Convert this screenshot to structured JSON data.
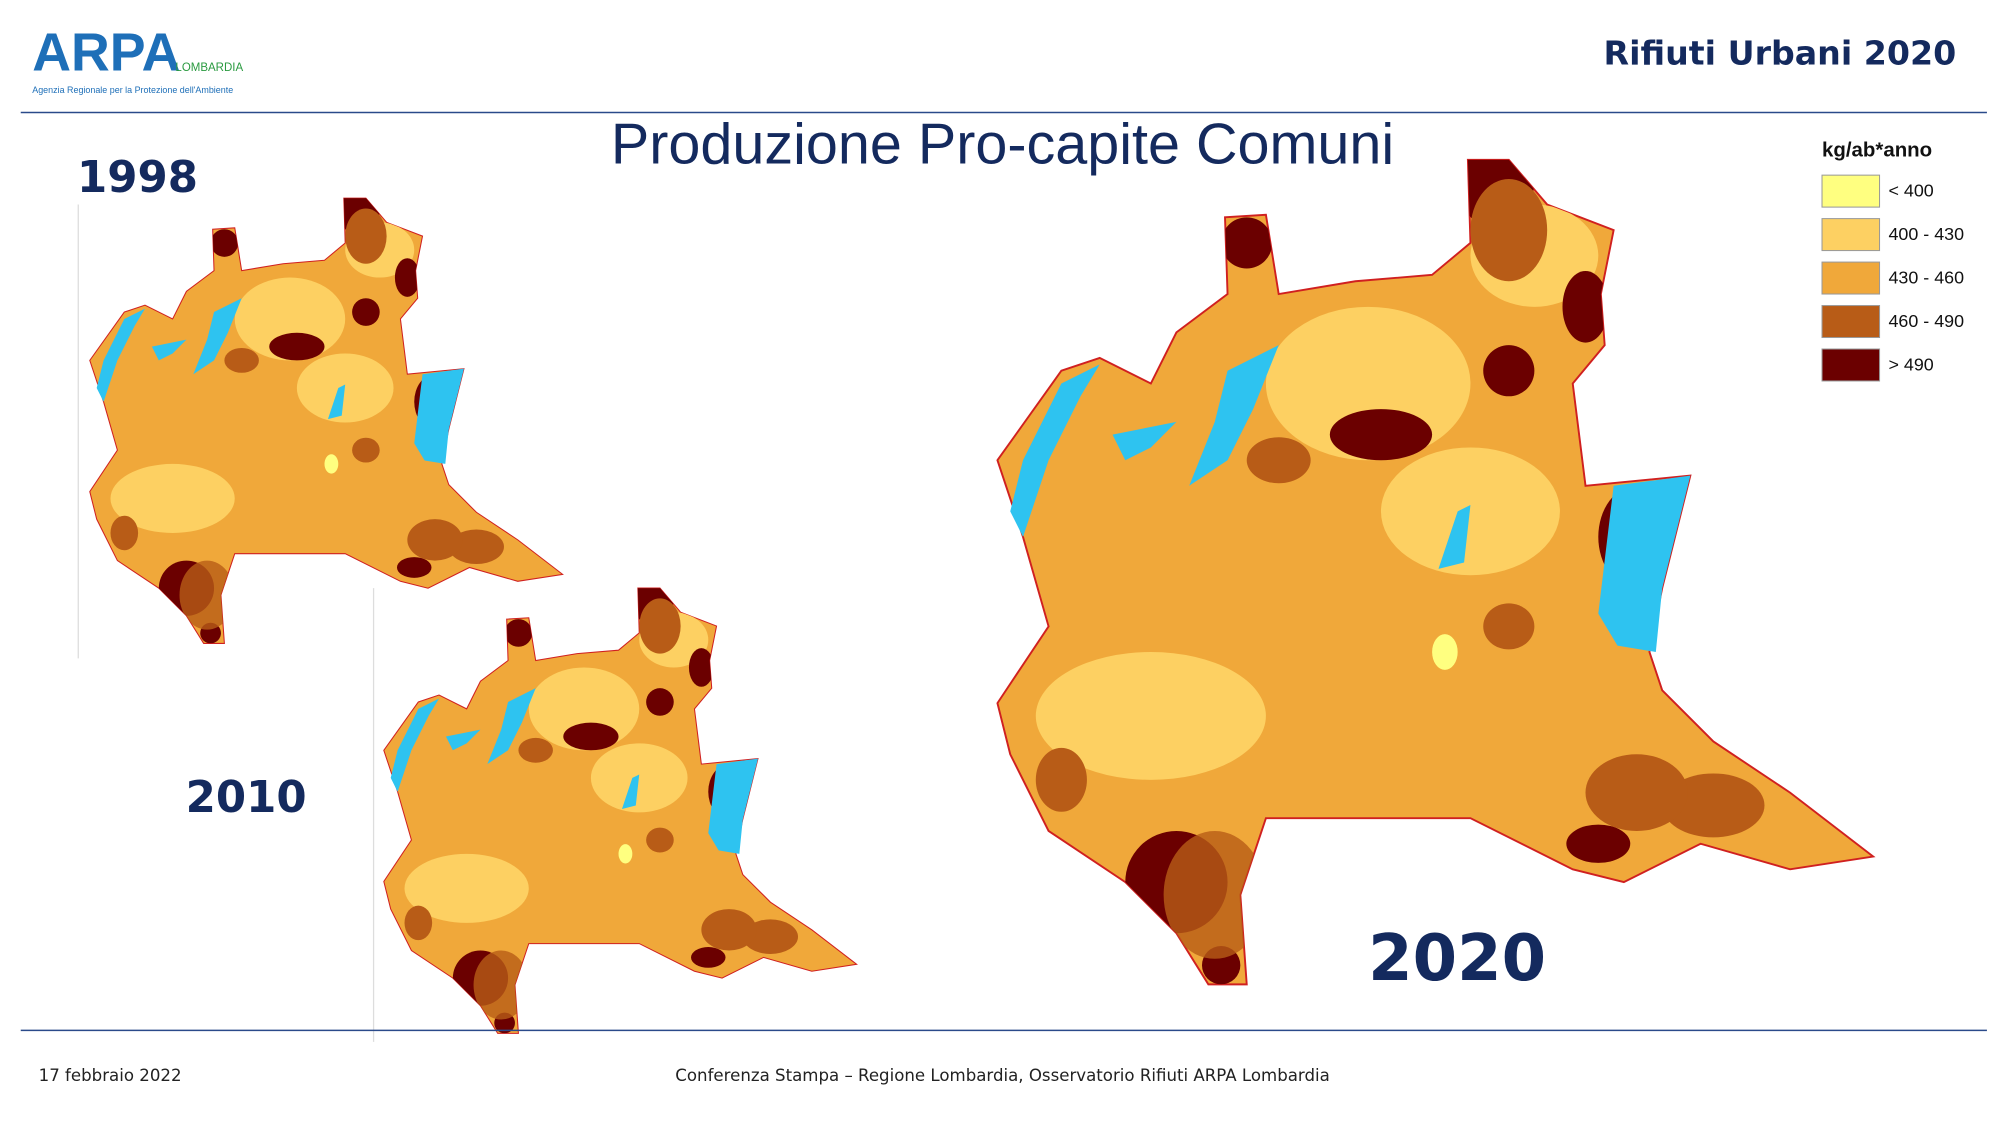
{
  "header": {
    "logo": {
      "mark": "ARPA",
      "region": "LOMBARDIA",
      "subtitle": "Agenzia Regionale per la Protezione dell'Ambiente"
    },
    "title": "Rifiuti Urbani 2020"
  },
  "slide_title": "Produzione Pro-capite Comuni",
  "maps": [
    {
      "year": "1998"
    },
    {
      "year": "2010"
    },
    {
      "year": "2020"
    }
  ],
  "legend": {
    "title": "kg/ab*anno",
    "items": [
      {
        "label": "< 400",
        "color": "#ffff80"
      },
      {
        "label": "400 - 430",
        "color": "#fdd062"
      },
      {
        "label": "430 - 460",
        "color": "#f0a83a"
      },
      {
        "label": "460 - 490",
        "color": "#b85c17"
      },
      {
        "label": "> 490",
        "color": "#6b0000"
      }
    ]
  },
  "footer": {
    "date": "17 febbraio 2022",
    "text": "Conferenza Stampa – Regione Lombardia, Osservatorio Rifiuti  ARPA Lombardia"
  }
}
